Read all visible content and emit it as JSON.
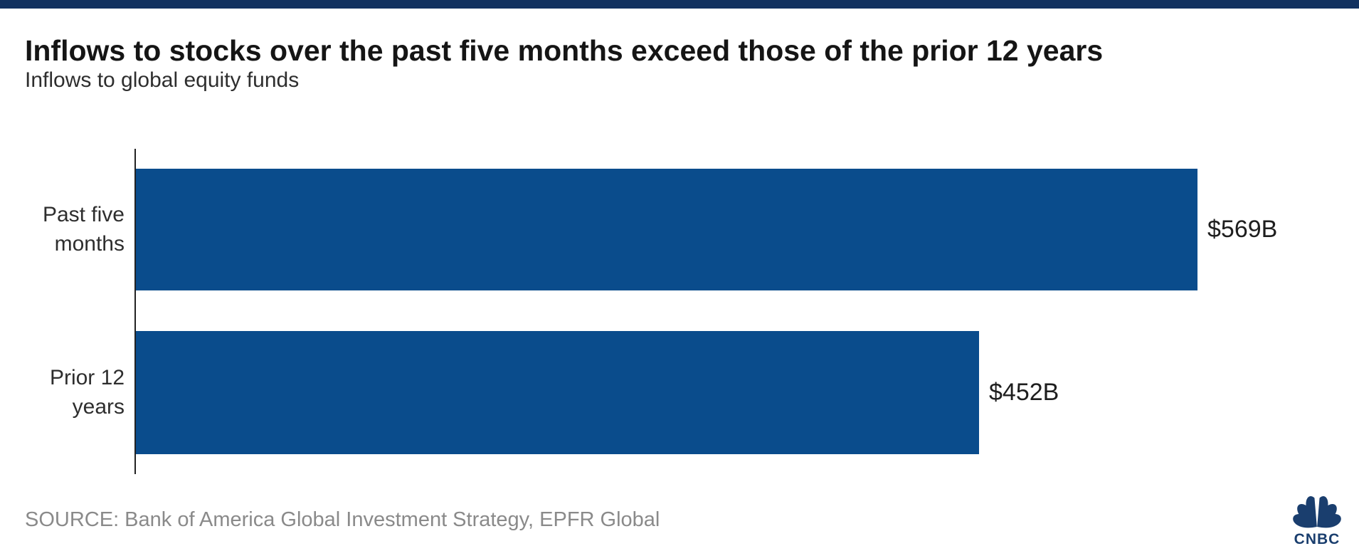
{
  "page": {
    "title": "Inflows to stocks over the past five months exceed those of the prior 12 years",
    "subtitle": "Inflows to global equity funds",
    "source": "SOURCE: Bank of America Global Investment Strategy, EPFR Global"
  },
  "chart_data": {
    "type": "bar",
    "orientation": "horizontal",
    "title": "Inflows to stocks over the past five months exceed those of the prior 12 years",
    "subtitle": "Inflows to global equity funds",
    "categories": [
      "Past five months",
      "Prior 12 years"
    ],
    "values": [
      569,
      452
    ],
    "value_labels": [
      "$569B",
      "$452B"
    ],
    "unit": "USD billions",
    "xlim": [
      0,
      655
    ],
    "grid": false,
    "legend": false,
    "axis_ticks_shown": false,
    "bar_color": "#0a4c8c",
    "source": "SOURCE: Bank of America Global Investment Strategy, EPFR Global"
  },
  "branding": {
    "logo_text": "CNBC"
  },
  "colors": {
    "header_bar": "#12315f",
    "bar": "#0a4c8c",
    "logo": "#1a3e6e",
    "title_text": "#151515",
    "body_text": "#2e2e2e",
    "source_text": "#8a8a8a",
    "axis": "#222222"
  }
}
